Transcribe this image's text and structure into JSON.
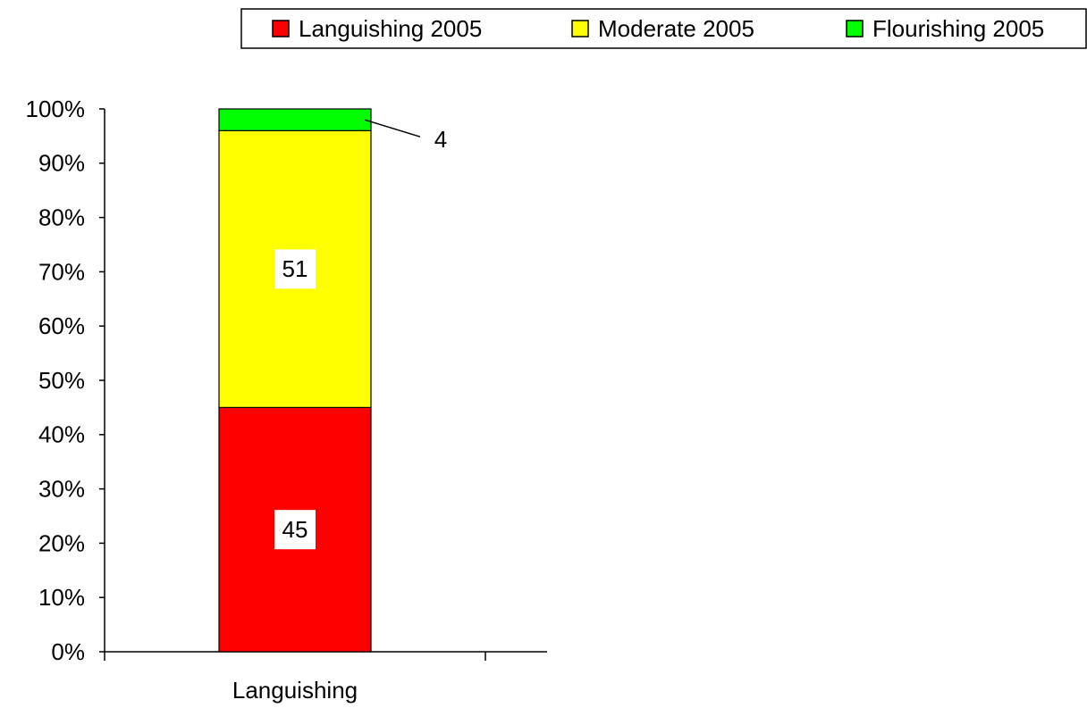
{
  "chart_data": {
    "type": "stacked_bar",
    "categories": [
      "Languishing"
    ],
    "series": [
      {
        "name": "Languishing 2005",
        "color": "#ff0000",
        "values": [
          45
        ]
      },
      {
        "name": "Moderate 2005",
        "color": "#ffff00",
        "values": [
          51
        ]
      },
      {
        "name": "Flourishing 2005",
        "color": "#00ff00",
        "values": [
          4
        ]
      }
    ],
    "ylim": [
      0,
      100
    ],
    "yticks": [
      {
        "value": 0,
        "label": "0%"
      },
      {
        "value": 10,
        "label": "10%"
      },
      {
        "value": 20,
        "label": "20%"
      },
      {
        "value": 30,
        "label": "30%"
      },
      {
        "value": 40,
        "label": "40%"
      },
      {
        "value": 50,
        "label": "50%"
      },
      {
        "value": 60,
        "label": "60%"
      },
      {
        "value": 70,
        "label": "70%"
      },
      {
        "value": 80,
        "label": "80%"
      },
      {
        "value": 90,
        "label": "90%"
      },
      {
        "value": 100,
        "label": "100%"
      }
    ],
    "legend": "top-right"
  }
}
